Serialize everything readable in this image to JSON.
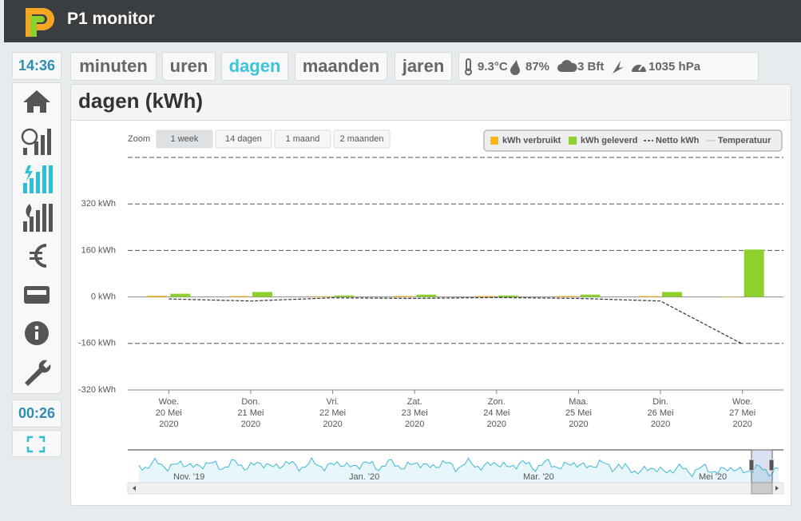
{
  "header": {
    "title": "P1 monitor"
  },
  "sidebar": {
    "clock": "14:36",
    "timer": "00:26"
  },
  "tabs": [
    "minuten",
    "uren",
    "dagen",
    "maanden",
    "jaren"
  ],
  "active_tab": 2,
  "weather": {
    "temperature": "9.3°C",
    "humidity": "87%",
    "wind": "3 Bft",
    "pressure": "1035 hPa"
  },
  "panel": {
    "title": "dagen (kWh)"
  },
  "chart_data": {
    "type": "bar",
    "zoom": {
      "label": "Zoom",
      "options": [
        "1 week",
        "14 dagen",
        "1 maand",
        "2 maanden"
      ],
      "active": 0
    },
    "categories": [
      [
        "Woe.",
        "20 Mei",
        "2020"
      ],
      [
        "Don.",
        "21 Mei",
        "2020"
      ],
      [
        "Vri.",
        "22 Mei",
        "2020"
      ],
      [
        "Zat.",
        "23 Mei",
        "2020"
      ],
      [
        "Zon.",
        "24 Mei",
        "2020"
      ],
      [
        "Maa.",
        "25 Mei",
        "2020"
      ],
      [
        "Din.",
        "26 Mei",
        "2020"
      ],
      [
        "Woe.",
        "27 Mei",
        "2020"
      ]
    ],
    "series": [
      {
        "name": "kWh verbruikt",
        "color": "#f5b624",
        "values": [
          4,
          3,
          2,
          3,
          3,
          3,
          3,
          1
        ]
      },
      {
        "name": "kWh geleverd",
        "color": "#8ed12c",
        "values": [
          11,
          17,
          5,
          8,
          5,
          8,
          17,
          163
        ]
      },
      {
        "name": "Netto kWh",
        "type": "line",
        "color": "#333333",
        "dashed": true,
        "values": [
          -7,
          -14,
          -3,
          -5,
          -2,
          -5,
          -14,
          -162
        ]
      },
      {
        "name": "Temperatuur",
        "type": "line",
        "color": "#cccccc",
        "visible": false,
        "values": [
          null,
          null,
          null,
          null,
          null,
          null,
          null,
          null
        ]
      }
    ],
    "ylim": [
      -320,
      480
    ],
    "yticks": [
      {
        "value": -320,
        "label": "-320 kWh"
      },
      {
        "value": -160,
        "label": "-160 kWh"
      },
      {
        "value": 0,
        "label": "0 kWh"
      },
      {
        "value": 160,
        "label": "160 kWh"
      },
      {
        "value": 320,
        "label": "320 kWh"
      }
    ],
    "grid": true,
    "legend": "top-right",
    "navigator_labels": [
      "Nov. '19",
      "Jan. '20",
      "Mar. '20",
      "Mei '20"
    ]
  }
}
